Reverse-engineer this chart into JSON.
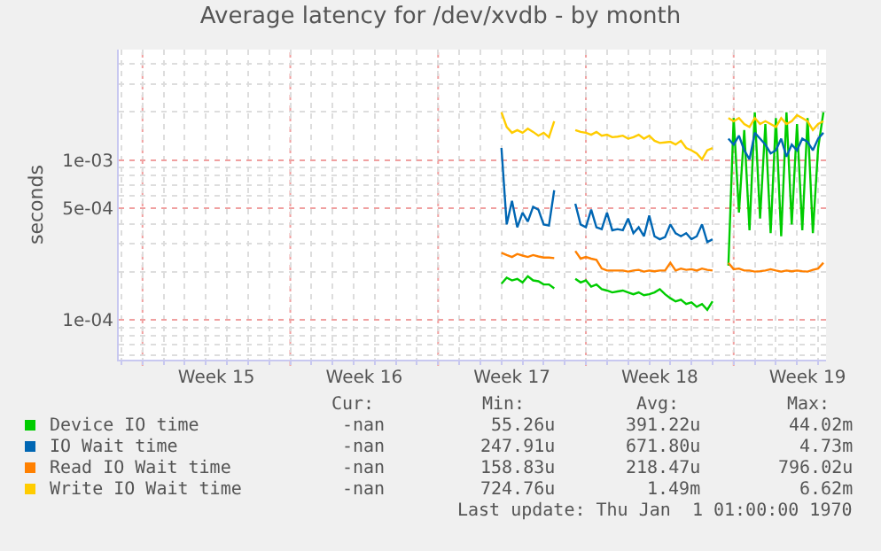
{
  "chart_data": {
    "type": "line",
    "title": "Average latency for /dev/xvdb - by month",
    "ylabel": "seconds",
    "categories": [
      null,
      null,
      null,
      null,
      null,
      null,
      null,
      null,
      null,
      null,
      null,
      null,
      null,
      null,
      null,
      null,
      null,
      null,
      "Week 15",
      null,
      null,
      null,
      null,
      null,
      null,
      null,
      null,
      null,
      null,
      null,
      null,
      null,
      null,
      null,
      null,
      null,
      null,
      null,
      null,
      null,
      null,
      null,
      null,
      null,
      null,
      null,
      "Week 16",
      null,
      null,
      null,
      null,
      null,
      null,
      null,
      null,
      null,
      null,
      null,
      null,
      null,
      null,
      null,
      null,
      null,
      null,
      null,
      null,
      null,
      null,
      null,
      null,
      null,
      null,
      null,
      "Week 17",
      null,
      null,
      null,
      null,
      null,
      null,
      null,
      null,
      null,
      null,
      null,
      null,
      null,
      null,
      null,
      null,
      null,
      null,
      null,
      null,
      null,
      null,
      null,
      null,
      null,
      null,
      null,
      "Week 18",
      null,
      null,
      null,
      null,
      null,
      null,
      null,
      null,
      null,
      null,
      null,
      null,
      null,
      null,
      null,
      null,
      null,
      null,
      null,
      null,
      null,
      null,
      null,
      null,
      null,
      null,
      null,
      "Week 19",
      null,
      null,
      null
    ],
    "series": [
      {
        "name": "Device IO time",
        "color": "#00cc00",
        "values": [
          null,
          null,
          null,
          null,
          null,
          null,
          null,
          null,
          null,
          null,
          null,
          null,
          null,
          null,
          null,
          null,
          null,
          null,
          null,
          null,
          null,
          null,
          null,
          null,
          null,
          null,
          null,
          null,
          null,
          null,
          null,
          null,
          null,
          null,
          null,
          null,
          null,
          null,
          null,
          null,
          null,
          null,
          null,
          null,
          null,
          null,
          null,
          null,
          null,
          null,
          null,
          null,
          null,
          null,
          null,
          null,
          null,
          null,
          null,
          null,
          null,
          null,
          null,
          null,
          null,
          null,
          null,
          null,
          null,
          null,
          null,
          null,
          0.000169,
          0.000184,
          0.000177,
          0.000181,
          0.000172,
          0.000188,
          0.000177,
          0.000175,
          0.000167,
          0.000167,
          0.000158,
          null,
          null,
          null,
          0.000181,
          0.000172,
          0.000177,
          0.000162,
          0.000167,
          0.000156,
          0.000153,
          0.000149,
          0.000151,
          0.000153,
          0.000149,
          0.000145,
          0.000149,
          0.000143,
          0.000145,
          0.000149,
          0.000156,
          0.000145,
          0.000137,
          0.000131,
          0.000134,
          0.000126,
          0.000129,
          0.000121,
          0.000126,
          0.000116,
          0.000131,
          null,
          null,
          0.000219,
          0.00183,
          0.00047,
          0.00154,
          0.000364,
          0.00199,
          0.000431,
          0.00168,
          0.000349,
          0.00183,
          0.000334,
          0.00199,
          0.000396,
          0.00168,
          0.000364,
          0.00183,
          0.000349,
          0.00119,
          0.00199
        ]
      },
      {
        "name": "IO Wait time",
        "color": "#0066b3",
        "values": [
          null,
          null,
          null,
          null,
          null,
          null,
          null,
          null,
          null,
          null,
          null,
          null,
          null,
          null,
          null,
          null,
          null,
          null,
          null,
          null,
          null,
          null,
          null,
          null,
          null,
          null,
          null,
          null,
          null,
          null,
          null,
          null,
          null,
          null,
          null,
          null,
          null,
          null,
          null,
          null,
          null,
          null,
          null,
          null,
          null,
          null,
          null,
          null,
          null,
          null,
          null,
          null,
          null,
          null,
          null,
          null,
          null,
          null,
          null,
          null,
          null,
          null,
          null,
          null,
          null,
          null,
          null,
          null,
          null,
          null,
          null,
          null,
          0.00119,
          0.000396,
          0.000556,
          0.00038,
          0.000469,
          0.000413,
          0.000511,
          0.00049,
          0.000396,
          0.00039,
          0.000648,
          null,
          null,
          null,
          0.000533,
          0.000396,
          0.00038,
          0.00049,
          0.00038,
          0.00037,
          0.000469,
          0.000364,
          0.00037,
          0.000364,
          0.000431,
          0.000349,
          0.00038,
          0.000334,
          0.00045,
          0.000334,
          0.00032,
          0.00033,
          0.000396,
          0.000349,
          0.000334,
          0.000349,
          0.00032,
          0.000334,
          0.000396,
          0.000307,
          0.00032,
          null,
          null,
          0.00136,
          0.00125,
          0.00142,
          0.00115,
          0.00101,
          0.00148,
          0.00136,
          0.00125,
          0.0011,
          0.00115,
          0.00136,
          0.00105,
          0.00125,
          0.00115,
          0.00136,
          0.0013,
          0.00115,
          0.00136,
          0.00148
        ]
      },
      {
        "name": "Read IO Wait time",
        "color": "#ff8000",
        "values": [
          null,
          null,
          null,
          null,
          null,
          null,
          null,
          null,
          null,
          null,
          null,
          null,
          null,
          null,
          null,
          null,
          null,
          null,
          null,
          null,
          null,
          null,
          null,
          null,
          null,
          null,
          null,
          null,
          null,
          null,
          null,
          null,
          null,
          null,
          null,
          null,
          null,
          null,
          null,
          null,
          null,
          null,
          null,
          null,
          null,
          null,
          null,
          null,
          null,
          null,
          null,
          null,
          null,
          null,
          null,
          null,
          null,
          null,
          null,
          null,
          null,
          null,
          null,
          null,
          null,
          null,
          null,
          null,
          null,
          null,
          null,
          null,
          0.000263,
          0.000255,
          0.000248,
          0.000259,
          0.000253,
          0.000248,
          0.000255,
          0.00025,
          0.000246,
          0.000246,
          0.000244,
          null,
          null,
          null,
          0.00027,
          0.000242,
          0.000248,
          0.000242,
          0.000238,
          0.00021,
          0.000204,
          0.000204,
          0.000204,
          0.000204,
          0.000201,
          0.000204,
          0.000206,
          0.000201,
          0.000204,
          0.000202,
          0.000204,
          0.000204,
          0.000228,
          0.000204,
          0.00021,
          0.000206,
          0.000208,
          0.000204,
          0.00021,
          0.000206,
          0.000204,
          null,
          null,
          0.000228,
          0.000208,
          0.00021,
          0.000204,
          0.000204,
          0.000201,
          0.000202,
          0.000204,
          0.000208,
          0.000204,
          0.000201,
          0.000204,
          0.000202,
          0.000204,
          0.000202,
          0.000201,
          0.000206,
          0.00021,
          0.000228
        ]
      },
      {
        "name": "Write IO Wait time",
        "color": "#ffcc00",
        "values": [
          null,
          null,
          null,
          null,
          null,
          null,
          null,
          null,
          null,
          null,
          null,
          null,
          null,
          null,
          null,
          null,
          null,
          null,
          null,
          null,
          null,
          null,
          null,
          null,
          null,
          null,
          null,
          null,
          null,
          null,
          null,
          null,
          null,
          null,
          null,
          null,
          null,
          null,
          null,
          null,
          null,
          null,
          null,
          null,
          null,
          null,
          null,
          null,
          null,
          null,
          null,
          null,
          null,
          null,
          null,
          null,
          null,
          null,
          null,
          null,
          null,
          null,
          null,
          null,
          null,
          null,
          null,
          null,
          null,
          null,
          null,
          null,
          0.00199,
          0.00161,
          0.00148,
          0.00154,
          0.00148,
          0.00157,
          0.0015,
          0.00142,
          0.00148,
          0.00139,
          0.00175,
          null,
          null,
          null,
          0.00154,
          0.0015,
          0.00148,
          0.00144,
          0.0015,
          0.00142,
          0.00144,
          0.00139,
          0.0014,
          0.00142,
          0.00136,
          0.00139,
          0.00144,
          0.00136,
          0.00142,
          0.00132,
          0.00128,
          0.00129,
          0.0013,
          0.00125,
          0.00132,
          0.00119,
          0.00115,
          0.0011,
          0.00101,
          0.00115,
          0.00119,
          null,
          null,
          0.00183,
          0.00175,
          0.00183,
          0.00168,
          0.00161,
          0.00183,
          0.00168,
          0.00175,
          0.00168,
          0.00161,
          0.00183,
          0.00168,
          0.00175,
          0.00191,
          0.00183,
          0.00175,
          0.00154,
          0.00168,
          0.00175
        ]
      }
    ],
    "log": "y",
    "ylim": [
      5.66e-05,
      0.0049
    ],
    "yticks": [
      {
        "value": 0.0001,
        "label": "1e-04"
      },
      {
        "value": 0.0005,
        "label": "5e-04"
      },
      {
        "value": 0.001,
        "label": "1e-03"
      }
    ],
    "grid": true,
    "legend": "bottom",
    "line_style": "solid",
    "marker": "none",
    "annotations": [
      "Cur:",
      "Min:",
      "Avg:",
      "Max:",
      "-nan",
      "55.26u",
      "391.22u",
      "44.02m",
      "-nan",
      "247.91u",
      "671.80u",
      "4.73m",
      "-nan",
      "158.83u",
      "218.47u",
      "796.02u",
      "-nan",
      "724.76u",
      "1.49m",
      "6.62m",
      "Last update: Thu Jan  1 01:00:00 1970"
    ]
  }
}
